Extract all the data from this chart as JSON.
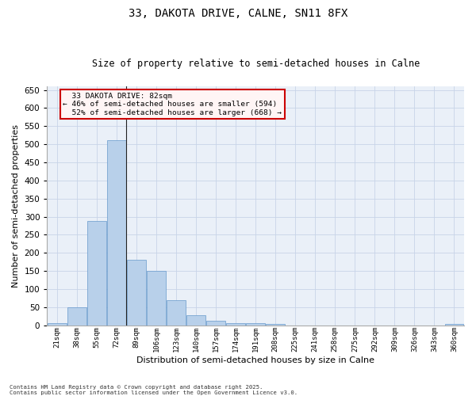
{
  "title1": "33, DAKOTA DRIVE, CALNE, SN11 8FX",
  "title2": "Size of property relative to semi-detached houses in Calne",
  "xlabel": "Distribution of semi-detached houses by size in Calne",
  "ylabel": "Number of semi-detached properties",
  "categories": [
    "21sqm",
    "38sqm",
    "55sqm",
    "72sqm",
    "89sqm",
    "106sqm",
    "123sqm",
    "140sqm",
    "157sqm",
    "174sqm",
    "191sqm",
    "208sqm",
    "225sqm",
    "241sqm",
    "258sqm",
    "275sqm",
    "292sqm",
    "309sqm",
    "326sqm",
    "343sqm",
    "360sqm"
  ],
  "values": [
    6,
    50,
    289,
    511,
    181,
    151,
    69,
    27,
    13,
    6,
    7,
    3,
    0,
    0,
    0,
    0,
    0,
    0,
    0,
    0,
    5
  ],
  "bar_color": "#b8d0ea",
  "bar_edge_color": "#6699cc",
  "property_bar_index": 3,
  "property_sqm": 82,
  "property_label": "33 DAKOTA DRIVE: 82sqm",
  "pct_smaller": 46,
  "pct_smaller_count": 594,
  "pct_larger": 52,
  "pct_larger_count": 668,
  "annotation_box_facecolor": "#fff5f5",
  "annotation_box_edge": "#cc0000",
  "grid_color": "#c8d4e8",
  "background_color": "#eaf0f8",
  "ylim": [
    0,
    660
  ],
  "yticks": [
    0,
    50,
    100,
    150,
    200,
    250,
    300,
    350,
    400,
    450,
    500,
    550,
    600,
    650
  ],
  "footer1": "Contains HM Land Registry data © Crown copyright and database right 2025.",
  "footer2": "Contains public sector information licensed under the Open Government Licence v3.0."
}
